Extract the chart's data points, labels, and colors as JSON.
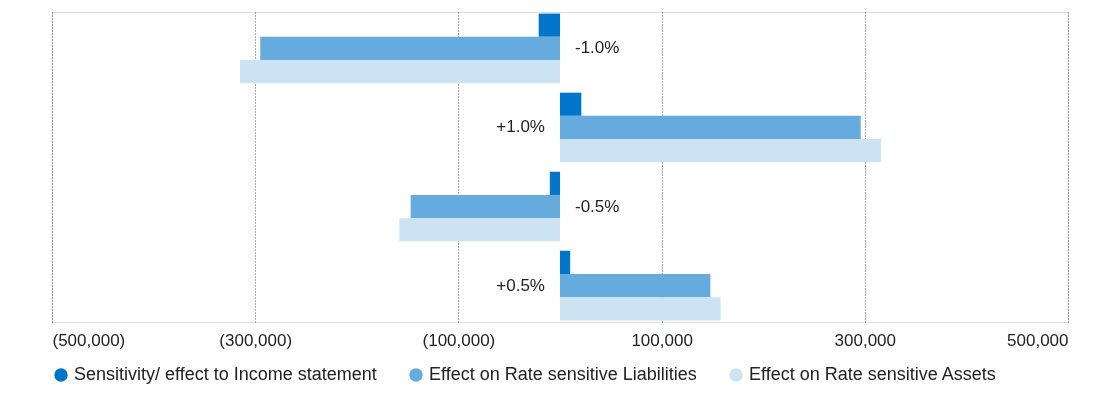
{
  "chart_data": {
    "type": "bar",
    "orientation": "horizontal",
    "categories": [
      "-1.0%",
      "+1.0%",
      "-0.5%",
      "+0.5%"
    ],
    "series": [
      {
        "name": "Sensitivity/ effect to Income statement",
        "color": "#0075c9",
        "values": [
          -21000,
          21000,
          -10000,
          10000
        ]
      },
      {
        "name": "Effect on Rate sensitive Liabilities",
        "color": "#66abdd",
        "values": [
          -295000,
          296000,
          -147000,
          148000
        ]
      },
      {
        "name": "Effect on Rate sensitive Assets",
        "color": "#cce3f3",
        "values": [
          -315000,
          316000,
          -158000,
          158000
        ]
      }
    ],
    "xlim": [
      -500000,
      500000
    ],
    "xticks": [
      {
        "value": -500000,
        "label": "(500,000)"
      },
      {
        "value": -300000,
        "label": "(300,000)"
      },
      {
        "value": -100000,
        "label": "(100,000)"
      },
      {
        "value": 100000,
        "label": "100,000"
      },
      {
        "value": 300000,
        "label": "300,000"
      },
      {
        "value": 500000,
        "label": "500,000"
      }
    ],
    "grid": "x",
    "legend": "bottom"
  }
}
